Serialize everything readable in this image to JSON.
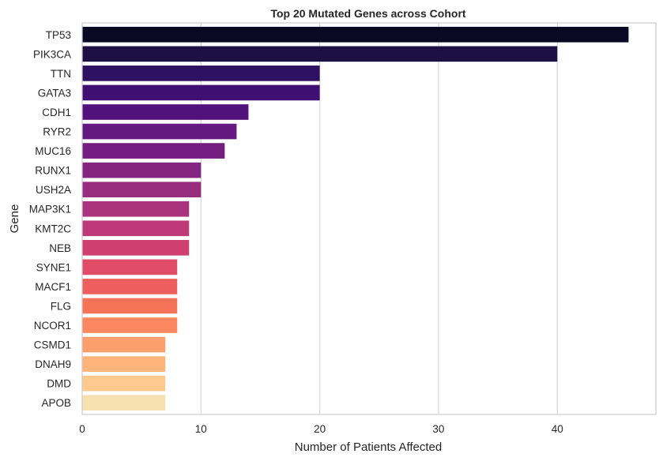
{
  "chart_data": {
    "type": "bar",
    "orientation": "horizontal",
    "title": "Top 20 Mutated Genes across Cohort",
    "xlabel": "Number of Patients Affected",
    "ylabel": "Gene",
    "xlim": [
      0,
      48.3
    ],
    "xticks": [
      0,
      10,
      20,
      30,
      40
    ],
    "grid": "vertical",
    "colormap": "magma",
    "categories": [
      "TP53",
      "PIK3CA",
      "TTN",
      "GATA3",
      "CDH1",
      "RYR2",
      "MUC16",
      "RUNX1",
      "USH2A",
      "MAP3K1",
      "KMT2C",
      "NEB",
      "SYNE1",
      "MACF1",
      "FLG",
      "NCOR1",
      "CSMD1",
      "DNAH9",
      "DMD",
      "APOB"
    ],
    "values": [
      46,
      40,
      20,
      20,
      14,
      13,
      12,
      10,
      10,
      9,
      9,
      9,
      8,
      8,
      8,
      8,
      7,
      7,
      7,
      7
    ],
    "colors": [
      "#0a0822",
      "#1c1044",
      "#2e1160",
      "#3f0f72",
      "#51127c",
      "#63197f",
      "#741d81",
      "#852581",
      "#982d80",
      "#aa337d",
      "#bd3977",
      "#cf4071",
      "#e04c67",
      "#ec5f5e",
      "#f57459",
      "#fb8861",
      "#fd9f6c",
      "#feb47b",
      "#fdc98e",
      "#f5e0b0"
    ]
  }
}
